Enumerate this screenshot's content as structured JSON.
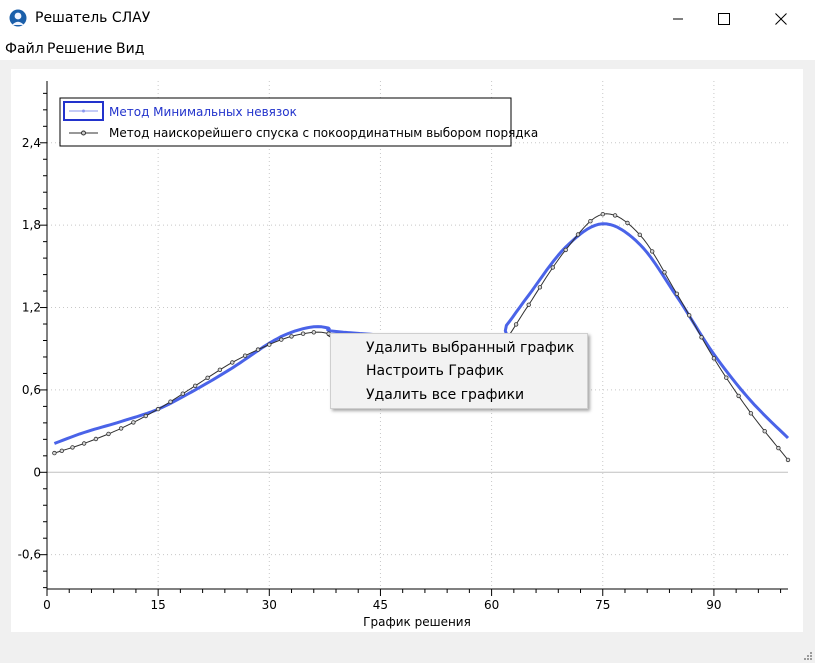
{
  "window": {
    "title": "Решатель СЛАУ",
    "app_icon": "user-avatar-icon"
  },
  "menubar": {
    "items": [
      "Файл",
      "Решение",
      "Вид"
    ]
  },
  "context_menu": {
    "items": [
      "Удалить выбранный график",
      "Настроить График",
      "Удалить все графики"
    ]
  },
  "chart_data": {
    "type": "line",
    "xlabel": "График решения",
    "ylabel": "",
    "xlim": [
      0,
      100
    ],
    "ylim": [
      -0.85,
      2.85
    ],
    "x_ticks": [
      0,
      15,
      30,
      45,
      60,
      75,
      90
    ],
    "y_ticks": [
      -0.6,
      0,
      0.6,
      1.2,
      1.8,
      2.4
    ],
    "x_tick_labels": [
      "0",
      "15",
      "30",
      "45",
      "60",
      "75",
      "90"
    ],
    "y_tick_labels": [
      "-0,6",
      "0",
      "0,6",
      "1,2",
      "1,8",
      "2,4"
    ],
    "grid": true,
    "legend_position": "top-left",
    "series": [
      {
        "name": "Метод Минимальных невязок",
        "color": "#4a63e8",
        "marker": "none",
        "x": [
          1,
          5,
          10,
          15,
          20,
          25,
          30,
          33,
          36,
          38,
          40,
          60,
          62,
          65,
          70,
          75,
          80,
          85,
          90,
          95,
          100
        ],
        "y": [
          0.21,
          0.29,
          0.37,
          0.46,
          0.6,
          0.76,
          0.94,
          1.02,
          1.06,
          1.05,
          1.02,
          0.96,
          1.07,
          1.29,
          1.64,
          1.81,
          1.66,
          1.28,
          0.86,
          0.52,
          0.25
        ]
      },
      {
        "name": "Метод наискорейшего спуска с покоординатным выбором порядка",
        "color": "#303030",
        "marker": "circle",
        "x": [
          1,
          5,
          10,
          15,
          20,
          25,
          30,
          33,
          36,
          38,
          40,
          60,
          62,
          65,
          70,
          75,
          80,
          85,
          90,
          95,
          100
        ],
        "y": [
          0.14,
          0.21,
          0.32,
          0.46,
          0.63,
          0.8,
          0.93,
          0.99,
          1.02,
          1.01,
          0.97,
          0.85,
          0.97,
          1.22,
          1.62,
          1.88,
          1.73,
          1.3,
          0.83,
          0.43,
          0.09
        ]
      }
    ]
  }
}
